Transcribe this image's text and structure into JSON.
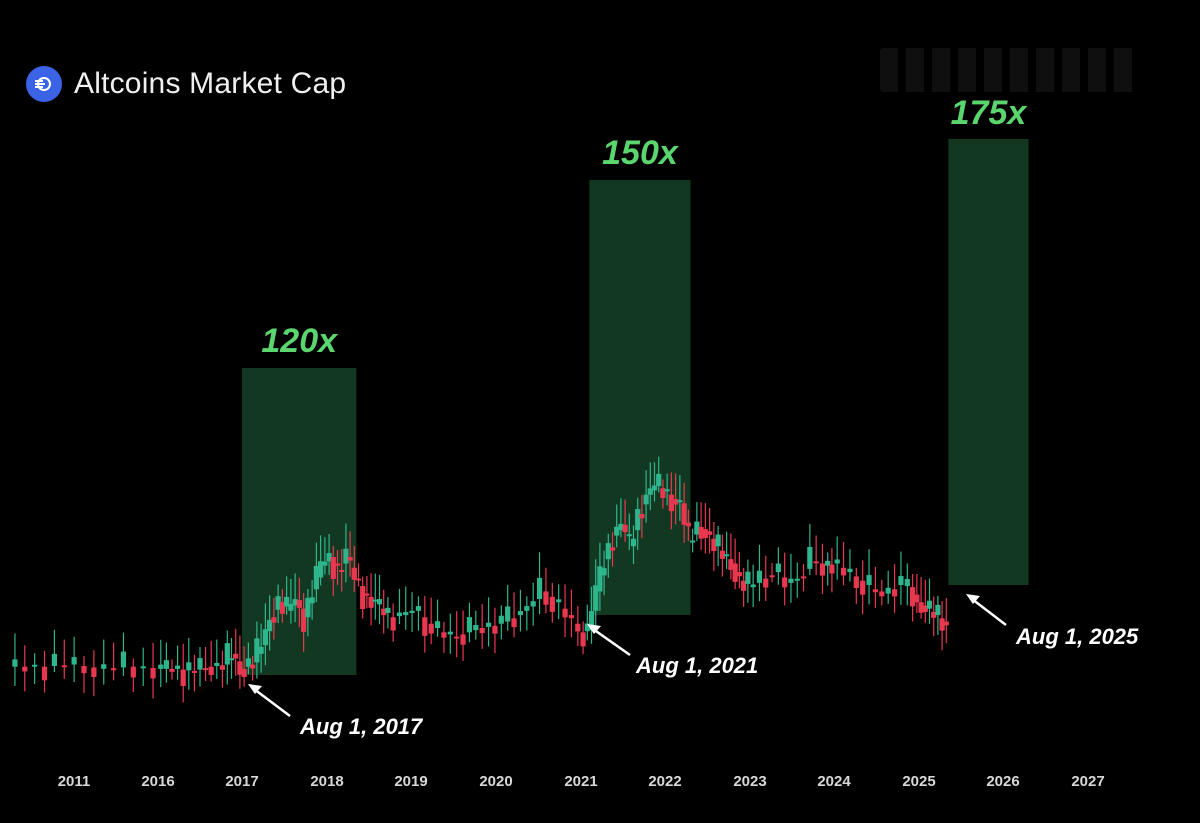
{
  "title": "Altcoins Market Cap",
  "icon": "coin-logo-icon",
  "colors": {
    "background": "#000000",
    "up": "#2fb58c",
    "down": "#e8384f",
    "zone_fill": "#123821",
    "multiplier_text": "#5bd66f",
    "label_text": "#ffffff",
    "tick_text": "#d8d8d8"
  },
  "chart_data": {
    "type": "candlestick",
    "x_ticks": [
      "2011",
      "2016",
      "2017",
      "2018",
      "2019",
      "2020",
      "2021",
      "2022",
      "2023",
      "2024",
      "2025",
      "2026",
      "2027"
    ],
    "x_range": [
      2015.0,
      2027.5
    ],
    "y_scale": "log",
    "grid": false,
    "legend": "none",
    "highlight_zones": [
      {
        "label": "120x",
        "start": 2017.0,
        "end": 2018.35
      },
      {
        "label": "150x",
        "start": 2021.1,
        "end": 2022.3
      },
      {
        "label": "175x",
        "start": 2025.35,
        "end": 2026.3
      }
    ],
    "annotations": [
      {
        "text": "Aug 1, 2017",
        "x": 2017.0
      },
      {
        "text": "Aug 1, 2021",
        "x": 2021.1
      },
      {
        "text": "Aug 1, 2025",
        "x": 2025.35
      }
    ],
    "series_close": [
      [
        2015.0,
        0.62
      ],
      [
        2015.2,
        0.62
      ],
      [
        2015.4,
        0.63
      ],
      [
        2015.6,
        0.61
      ],
      [
        2015.8,
        0.62
      ],
      [
        2016.0,
        0.61
      ],
      [
        2016.2,
        0.61
      ],
      [
        2016.4,
        0.6
      ],
      [
        2016.6,
        0.62
      ],
      [
        2016.8,
        0.63
      ],
      [
        2016.9,
        0.68
      ],
      [
        2017.0,
        0.61
      ],
      [
        2017.05,
        0.62
      ],
      [
        2017.15,
        0.64
      ],
      [
        2017.25,
        0.72
      ],
      [
        2017.35,
        0.85
      ],
      [
        2017.45,
        0.92
      ],
      [
        2017.55,
        0.88
      ],
      [
        2017.65,
        0.93
      ],
      [
        2017.75,
        0.85
      ],
      [
        2017.85,
        0.98
      ],
      [
        2017.95,
        1.09
      ],
      [
        2018.05,
        1.13
      ],
      [
        2018.15,
        1.07
      ],
      [
        2018.25,
        1.13
      ],
      [
        2018.35,
        1.03
      ],
      [
        2018.45,
        0.96
      ],
      [
        2018.55,
        0.93
      ],
      [
        2018.65,
        0.89
      ],
      [
        2018.75,
        0.85
      ],
      [
        2018.9,
        0.86
      ],
      [
        2019.05,
        0.88
      ],
      [
        2019.2,
        0.82
      ],
      [
        2019.35,
        0.78
      ],
      [
        2019.5,
        0.76
      ],
      [
        2019.65,
        0.78
      ],
      [
        2019.8,
        0.8
      ],
      [
        2019.95,
        0.81
      ],
      [
        2020.1,
        0.83
      ],
      [
        2020.25,
        0.86
      ],
      [
        2020.4,
        0.9
      ],
      [
        2020.55,
        0.97
      ],
      [
        2020.7,
        0.92
      ],
      [
        2020.85,
        0.86
      ],
      [
        2021.0,
        0.78
      ],
      [
        2021.1,
        0.79
      ],
      [
        2021.2,
        0.97
      ],
      [
        2021.3,
        1.12
      ],
      [
        2021.4,
        1.23
      ],
      [
        2021.5,
        1.28
      ],
      [
        2021.6,
        1.18
      ],
      [
        2021.7,
        1.33
      ],
      [
        2021.8,
        1.42
      ],
      [
        2021.9,
        1.46
      ],
      [
        2022.0,
        1.44
      ],
      [
        2022.1,
        1.4
      ],
      [
        2022.2,
        1.38
      ],
      [
        2022.3,
        1.2
      ],
      [
        2022.4,
        1.27
      ],
      [
        2022.5,
        1.25
      ],
      [
        2022.6,
        1.18
      ],
      [
        2022.7,
        1.14
      ],
      [
        2022.8,
        1.1
      ],
      [
        2022.9,
        1.02
      ],
      [
        2023.0,
        0.99
      ],
      [
        2023.15,
        1.03
      ],
      [
        2023.3,
        1.06
      ],
      [
        2023.45,
        1.01
      ],
      [
        2023.6,
        1.04
      ],
      [
        2023.75,
        1.11
      ],
      [
        2023.9,
        1.09
      ],
      [
        2024.0,
        1.1
      ],
      [
        2024.15,
        1.06
      ],
      [
        2024.3,
        1.02
      ],
      [
        2024.45,
        0.98
      ],
      [
        2024.6,
        0.96
      ],
      [
        2024.75,
        1.0
      ],
      [
        2024.9,
        0.99
      ],
      [
        2025.0,
        0.92
      ],
      [
        2025.1,
        0.89
      ],
      [
        2025.2,
        0.86
      ],
      [
        2025.3,
        0.83
      ],
      [
        2025.35,
        0.82
      ]
    ]
  }
}
